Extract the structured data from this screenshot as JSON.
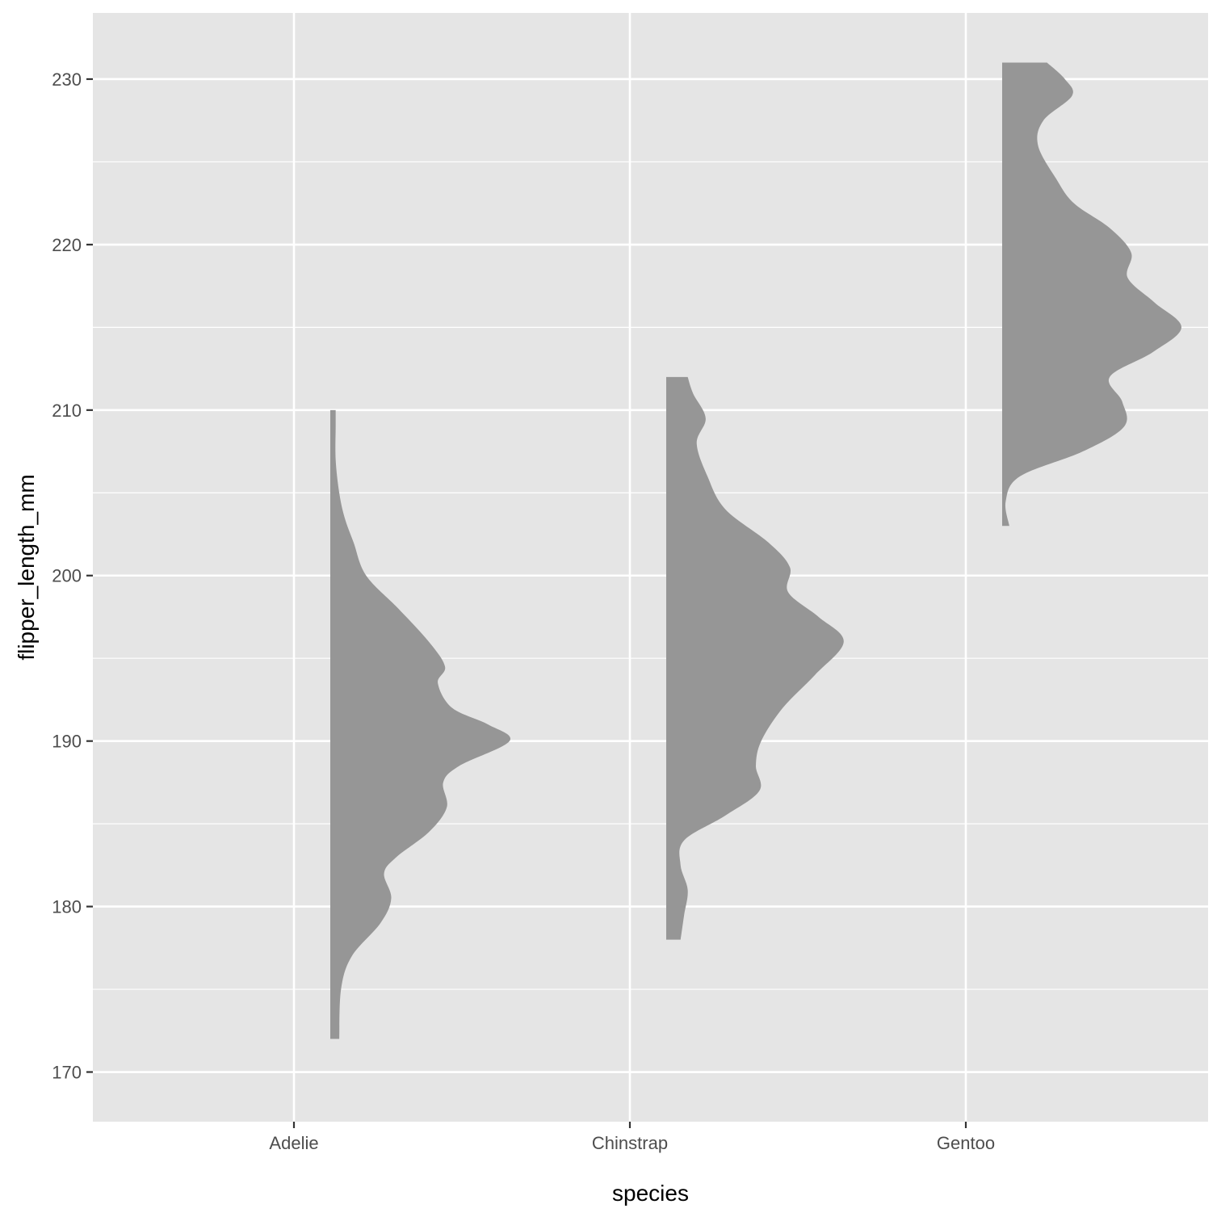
{
  "chart_data": {
    "type": "half-violin",
    "xlabel": "species",
    "ylabel": "flipper_length_mm",
    "categories": [
      "Adelie",
      "Chinstrap",
      "Gentoo"
    ],
    "ylim": [
      167,
      234
    ],
    "yticks": [
      170,
      180,
      190,
      200,
      210,
      220,
      230
    ],
    "grid": true,
    "legend": "none",
    "colors": {
      "panel": "#e5e5e5",
      "grid": "#ffffff",
      "fill": "#969696",
      "text": "#4d4d4d",
      "tick": "#333333"
    },
    "series": [
      {
        "category": "Adelie",
        "min": 172,
        "max": 210,
        "density_profile": [
          [
            172,
            0.05
          ],
          [
            175,
            0.06
          ],
          [
            177,
            0.12
          ],
          [
            179,
            0.28
          ],
          [
            180.5,
            0.34
          ],
          [
            182,
            0.3
          ],
          [
            183,
            0.37
          ],
          [
            184.5,
            0.55
          ],
          [
            186,
            0.65
          ],
          [
            187.5,
            0.63
          ],
          [
            188.5,
            0.72
          ],
          [
            190,
            1.0
          ],
          [
            191,
            0.88
          ],
          [
            192,
            0.68
          ],
          [
            193.5,
            0.6
          ],
          [
            194.5,
            0.64
          ],
          [
            196,
            0.55
          ],
          [
            198,
            0.38
          ],
          [
            200,
            0.2
          ],
          [
            202,
            0.13
          ],
          [
            203.5,
            0.08
          ],
          [
            205,
            0.05
          ],
          [
            207,
            0.03
          ],
          [
            209,
            0.03
          ],
          [
            210,
            0.03
          ]
        ]
      },
      {
        "category": "Chinstrap",
        "min": 178,
        "max": 212,
        "density_profile": [
          [
            178,
            0.08
          ],
          [
            179.5,
            0.1
          ],
          [
            181,
            0.12
          ],
          [
            182.5,
            0.08
          ],
          [
            184,
            0.1
          ],
          [
            185.5,
            0.33
          ],
          [
            187,
            0.52
          ],
          [
            188.5,
            0.5
          ],
          [
            190,
            0.53
          ],
          [
            192,
            0.65
          ],
          [
            194,
            0.83
          ],
          [
            196,
            0.99
          ],
          [
            197.5,
            0.85
          ],
          [
            199,
            0.68
          ],
          [
            200.5,
            0.69
          ],
          [
            202,
            0.57
          ],
          [
            204,
            0.33
          ],
          [
            206,
            0.23
          ],
          [
            208,
            0.17
          ],
          [
            209.5,
            0.22
          ],
          [
            211,
            0.15
          ],
          [
            212,
            0.12
          ]
        ]
      },
      {
        "category": "Gentoo",
        "min": 203,
        "max": 231,
        "density_profile": [
          [
            203,
            0.04
          ],
          [
            204.5,
            0.02
          ],
          [
            206,
            0.1
          ],
          [
            207.5,
            0.45
          ],
          [
            209,
            0.68
          ],
          [
            210.5,
            0.67
          ],
          [
            212,
            0.6
          ],
          [
            213.5,
            0.84
          ],
          [
            215,
            1.0
          ],
          [
            216.5,
            0.85
          ],
          [
            218,
            0.7
          ],
          [
            219.5,
            0.72
          ],
          [
            221,
            0.6
          ],
          [
            222.5,
            0.4
          ],
          [
            224,
            0.3
          ],
          [
            226,
            0.2
          ],
          [
            227.5,
            0.23
          ],
          [
            229,
            0.39
          ],
          [
            230,
            0.35
          ],
          [
            231,
            0.25
          ]
        ]
      }
    ]
  }
}
